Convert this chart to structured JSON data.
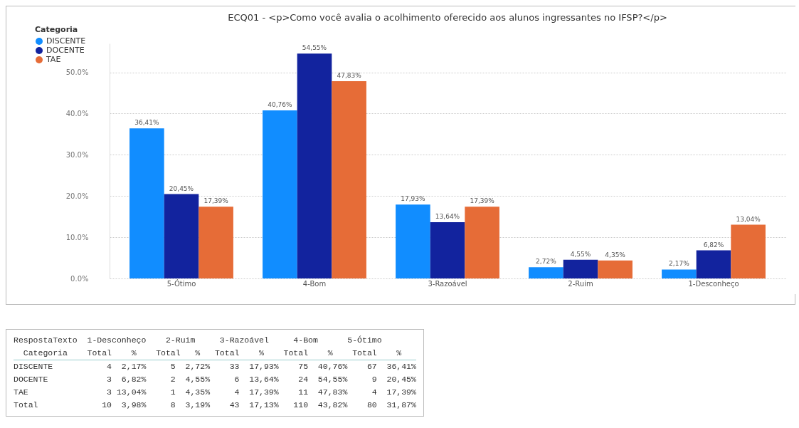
{
  "chart_data": [
    {
      "type": "bar",
      "title": "ECQ01 - <p>Como você avalia o acolhimento oferecido aos alunos ingressantes no IFSP?</p>",
      "legend_title": "Categoria",
      "categories": [
        "5-Ótimo",
        "4-Bom",
        "3-Razoável",
        "2-Ruim",
        "1-Desconheço"
      ],
      "series": [
        {
          "name": "DISCENTE",
          "color": "#118dff",
          "values": [
            36.41,
            40.76,
            17.93,
            2.72,
            2.17
          ],
          "value_labels": [
            "36,41%",
            "40,76%",
            "17,93%",
            "2,72%",
            "2,17%"
          ]
        },
        {
          "name": "DOCENTE",
          "color": "#12239e",
          "values": [
            20.45,
            54.55,
            13.64,
            4.55,
            6.82
          ],
          "value_labels": [
            "20,45%",
            "54,55%",
            "13,64%",
            "4,55%",
            "6,82%"
          ]
        },
        {
          "name": "TAE",
          "color": "#e66c37",
          "values": [
            17.39,
            47.83,
            17.39,
            4.35,
            13.04
          ],
          "value_labels": [
            "17,39%",
            "47,83%",
            "17,39%",
            "4,35%",
            "13,04%"
          ]
        }
      ],
      "ylim": [
        0,
        57
      ],
      "yticks": [
        {
          "value": 0,
          "label": "0.0%"
        },
        {
          "value": 10,
          "label": "10.0%"
        },
        {
          "value": 20,
          "label": "20.0%"
        },
        {
          "value": 30,
          "label": "30.0%"
        },
        {
          "value": 40,
          "label": "40.0%"
        },
        {
          "value": 50,
          "label": "50.0%"
        }
      ],
      "grid": "y",
      "legend": "top left"
    },
    {
      "type": "other",
      "annotations": [
        "RespostaTexto  1-Desconheço    2-Ruim     3-Razoável     4-Bom      5-Ótimo",
        "  Categoria    Total    %    Total   %   Total    %    Total    %    Total    %",
        "DISCENTE           4  2,17%     5  2,72%    33  17,93%    75  40,76%    67  36,41%",
        "DOCENTE            3  6,82%     2  4,55%     6  13,64%    24  54,55%     9  20,45%",
        "TAE                3 13,04%     1  4,35%     4  17,39%    11  47,83%     4  17,39%",
        "Total             10  3,98%     8  3,19%    43  17,13%   110  43,82%    80  31,87%"
      ]
    }
  ]
}
